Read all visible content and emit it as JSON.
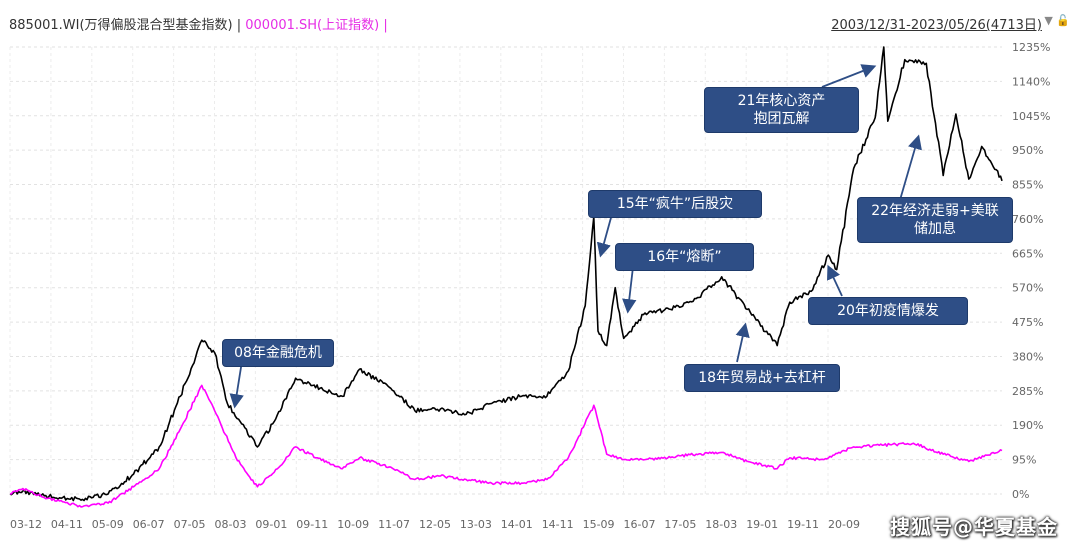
{
  "header": {
    "series1_label": "885001.WI(万得偏股混合型基金指数)",
    "separator": " | ",
    "series2_label": "000001.SH(上证指数)",
    "series2_suffix": " |",
    "range_label": "2003/12/31-2023/05/26(4713日)"
  },
  "icons": [
    "dropdown-triangle-icon",
    "lock-icon"
  ],
  "colors": {
    "series1": "#000000",
    "series2": "#ff00ff",
    "annotation_bg": "#2e4e86"
  },
  "annotations": {
    "a08": "08年金融危机",
    "a15": "15年“疯牛”后股灾",
    "a16": "16年“熔断”",
    "a18": "18年贸易战+去杠杆",
    "a20": "20年初疫情爆发",
    "a21_line1": "21年核心资产",
    "a21_line2": "抱团瓦解",
    "a22_line1": "22年经济走弱+美联",
    "a22_line2": "储加息"
  },
  "watermark": "搜狐号@华夏基金",
  "chart_data": {
    "type": "line",
    "x_ticks": [
      "03-12",
      "04-11",
      "05-09",
      "06-07",
      "07-05",
      "08-03",
      "09-01",
      "09-11",
      "10-09",
      "11-07",
      "12-05",
      "13-03",
      "14-01",
      "14-11",
      "15-09",
      "16-07",
      "17-05",
      "18-03",
      "19-01",
      "19-11",
      "20-09"
    ],
    "y_ticks": [
      "1235%",
      "1140%",
      "1045%",
      "950%",
      "855%",
      "760%",
      "665%",
      "570%",
      "475%",
      "380%",
      "285%",
      "190%",
      "95%",
      "0%"
    ],
    "ylim": [
      0,
      1235
    ],
    "y_unit": "%",
    "x_range": [
      "2003-12-31",
      "2023-05-26"
    ],
    "series": [
      {
        "name": "885001.WI(万得偏股混合型基金指数)",
        "color": "#000000",
        "points": [
          [
            "2003-12-31",
            0
          ],
          [
            "2004-04-01",
            8
          ],
          [
            "2004-09-01",
            -5
          ],
          [
            "2005-06-01",
            -15
          ],
          [
            "2005-12-01",
            0
          ],
          [
            "2006-06-01",
            55
          ],
          [
            "2006-12-01",
            130
          ],
          [
            "2007-05-01",
            270
          ],
          [
            "2007-10-01",
            425
          ],
          [
            "2008-01-01",
            390
          ],
          [
            "2008-04-01",
            250
          ],
          [
            "2008-07-01",
            200
          ],
          [
            "2008-11-01",
            130
          ],
          [
            "2009-03-01",
            200
          ],
          [
            "2009-08-01",
            320
          ],
          [
            "2009-12-01",
            300
          ],
          [
            "2010-07-01",
            270
          ],
          [
            "2010-11-01",
            345
          ],
          [
            "2011-06-01",
            295
          ],
          [
            "2011-12-01",
            230
          ],
          [
            "2012-06-01",
            235
          ],
          [
            "2012-12-01",
            220
          ],
          [
            "2013-06-01",
            250
          ],
          [
            "2014-01-01",
            270
          ],
          [
            "2014-07-01",
            270
          ],
          [
            "2014-12-01",
            340
          ],
          [
            "2015-04-01",
            520
          ],
          [
            "2015-06-01",
            765
          ],
          [
            "2015-07-01",
            450
          ],
          [
            "2015-09-01",
            410
          ],
          [
            "2015-11-01",
            570
          ],
          [
            "2016-01-01",
            430
          ],
          [
            "2016-06-01",
            500
          ],
          [
            "2016-12-01",
            510
          ],
          [
            "2017-06-01",
            540
          ],
          [
            "2017-12-01",
            600
          ],
          [
            "2018-06-01",
            510
          ],
          [
            "2019-01-01",
            410
          ],
          [
            "2019-04-01",
            530
          ],
          [
            "2019-09-01",
            560
          ],
          [
            "2020-01-01",
            660
          ],
          [
            "2020-03-01",
            620
          ],
          [
            "2020-07-01",
            900
          ],
          [
            "2020-12-01",
            1040
          ],
          [
            "2021-02-01",
            1235
          ],
          [
            "2021-03-01",
            1030
          ],
          [
            "2021-07-01",
            1200
          ],
          [
            "2021-12-01",
            1190
          ],
          [
            "2022-04-01",
            880
          ],
          [
            "2022-07-01",
            1050
          ],
          [
            "2022-10-01",
            870
          ],
          [
            "2023-01-01",
            960
          ],
          [
            "2023-05-26",
            865
          ]
        ]
      },
      {
        "name": "000001.SH(上证指数)",
        "color": "#ff00ff",
        "points": [
          [
            "2003-12-31",
            0
          ],
          [
            "2004-04-01",
            15
          ],
          [
            "2004-09-01",
            -10
          ],
          [
            "2005-06-01",
            -35
          ],
          [
            "2005-12-01",
            -25
          ],
          [
            "2006-06-01",
            20
          ],
          [
            "2006-12-01",
            70
          ],
          [
            "2007-05-01",
            180
          ],
          [
            "2007-10-01",
            300
          ],
          [
            "2008-01-01",
            230
          ],
          [
            "2008-06-01",
            100
          ],
          [
            "2008-11-01",
            20
          ],
          [
            "2009-03-01",
            60
          ],
          [
            "2009-08-01",
            130
          ],
          [
            "2010-01-01",
            100
          ],
          [
            "2010-07-01",
            70
          ],
          [
            "2010-11-01",
            100
          ],
          [
            "2011-06-01",
            75
          ],
          [
            "2011-12-01",
            40
          ],
          [
            "2012-06-01",
            50
          ],
          [
            "2012-12-01",
            40
          ],
          [
            "2013-06-01",
            30
          ],
          [
            "2014-01-01",
            30
          ],
          [
            "2014-07-01",
            40
          ],
          [
            "2014-12-01",
            100
          ],
          [
            "2015-06-01",
            245
          ],
          [
            "2015-09-01",
            110
          ],
          [
            "2016-01-01",
            95
          ],
          [
            "2016-06-01",
            95
          ],
          [
            "2017-06-01",
            110
          ],
          [
            "2017-12-01",
            115
          ],
          [
            "2018-06-01",
            90
          ],
          [
            "2019-01-01",
            70
          ],
          [
            "2019-04-01",
            100
          ],
          [
            "2019-12-01",
            95
          ],
          [
            "2020-07-01",
            130
          ],
          [
            "2021-02-01",
            135
          ],
          [
            "2021-09-01",
            140
          ],
          [
            "2022-04-01",
            110
          ],
          [
            "2022-10-01",
            90
          ],
          [
            "2023-05-26",
            120
          ]
        ]
      }
    ]
  }
}
